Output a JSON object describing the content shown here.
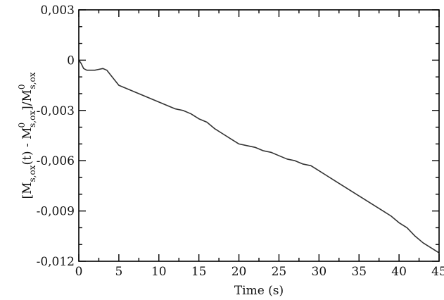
{
  "chart_data": {
    "type": "line",
    "xlabel": "Time (s)",
    "ylabel_parts": {
      "open": "[M",
      "sub1": "s,ox",
      "mid": "(t) - M",
      "sup0a": "0",
      "sub2": "s,ox",
      "close": "]/M",
      "sup0b": "0",
      "sub3": "s,ox"
    },
    "xlim": [
      0,
      45
    ],
    "ylim": [
      -0.012,
      0.003
    ],
    "x_ticks": [
      0,
      5,
      10,
      15,
      20,
      25,
      30,
      35,
      40,
      45
    ],
    "x_tick_labels": [
      "0",
      "5",
      "10",
      "15",
      "20",
      "25",
      "30",
      "35",
      "40",
      "45"
    ],
    "y_ticks": [
      0.003,
      0,
      -0.003,
      -0.006,
      -0.009,
      -0.012
    ],
    "y_tick_labels": [
      "0,003",
      "0",
      "-0,003",
      "-0,006",
      "-0,009",
      "-0,012"
    ],
    "series": [
      {
        "x": [
          0,
          0.3,
          0.6,
          1,
          1.5,
          2,
          2.5,
          3,
          3.5,
          4,
          5,
          6,
          7,
          8,
          9,
          10,
          11,
          12,
          13,
          14,
          15,
          16,
          17,
          18,
          19,
          20,
          21,
          22,
          23,
          24,
          25,
          26,
          27,
          28,
          29,
          30,
          31,
          32,
          33,
          34,
          35,
          36,
          37,
          38,
          39,
          40,
          41,
          42,
          43,
          44,
          45
        ],
        "y": [
          0,
          -0.0002,
          -0.0005,
          -0.0006,
          -0.0006,
          -0.0006,
          -0.00055,
          -0.0005,
          -0.0006,
          -0.0009,
          -0.0015,
          -0.0017,
          -0.0019,
          -0.0021,
          -0.0023,
          -0.0025,
          -0.0027,
          -0.0029,
          -0.003,
          -0.0032,
          -0.0035,
          -0.0037,
          -0.0041,
          -0.0044,
          -0.0047,
          -0.005,
          -0.0051,
          -0.0052,
          -0.0054,
          -0.0055,
          -0.0057,
          -0.0059,
          -0.006,
          -0.0062,
          -0.0063,
          -0.0066,
          -0.0069,
          -0.0072,
          -0.0075,
          -0.0078,
          -0.0081,
          -0.0084,
          -0.0087,
          -0.009,
          -0.0093,
          -0.0097,
          -0.01,
          -0.0105,
          -0.0109,
          -0.0112,
          -0.0115
        ]
      }
    ],
    "grid": false,
    "legend": false
  }
}
